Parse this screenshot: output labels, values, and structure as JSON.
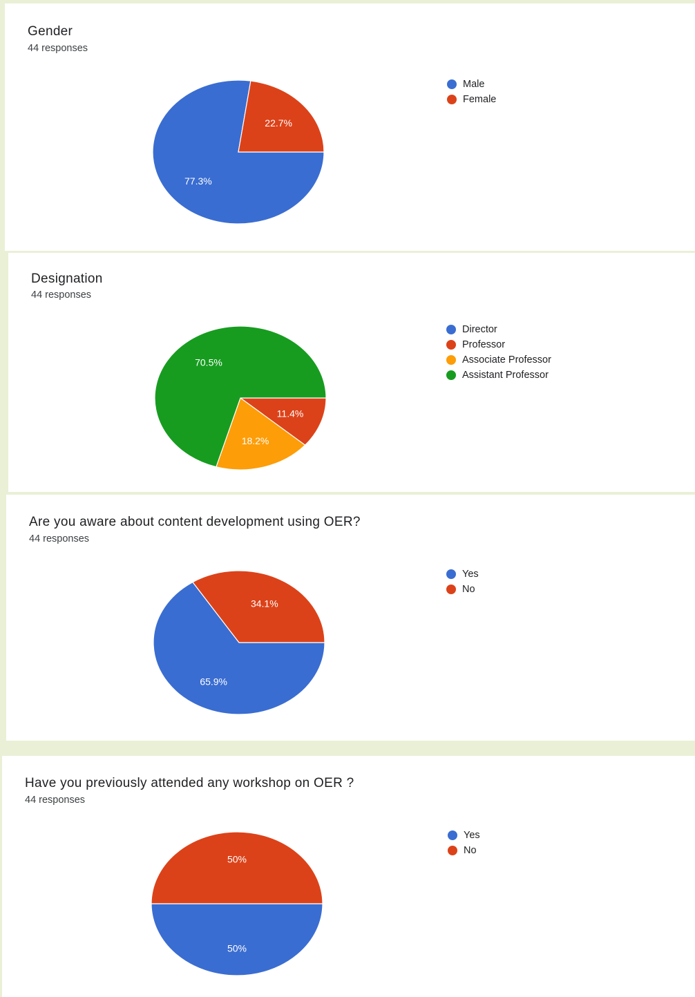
{
  "colors": {
    "blue": "#3a6dd1",
    "red": "#dc4219",
    "orange": "#fd9d08",
    "green": "#179c20"
  },
  "chart_data": [
    {
      "type": "pie",
      "title": "Gender",
      "subtitle": "44 responses",
      "labels": [
        "Male",
        "Female"
      ],
      "values": [
        77.3,
        22.7
      ],
      "value_labels": [
        "77.3%",
        "22.7%"
      ],
      "colors": [
        "#3a6dd1",
        "#dc4219"
      ],
      "legend": "right"
    },
    {
      "type": "pie",
      "title": "Designation",
      "subtitle": "44 responses",
      "labels": [
        "Director",
        "Professor",
        "Associate Professor",
        "Assistant Professor"
      ],
      "values": [
        0,
        11.4,
        18.2,
        70.5
      ],
      "value_labels": [
        "",
        "11.4%",
        "18.2%",
        "70.5%"
      ],
      "colors": [
        "#3a6dd1",
        "#dc4219",
        "#fd9d08",
        "#179c20"
      ],
      "legend": "right"
    },
    {
      "type": "pie",
      "title": "Are you aware about content development using OER?",
      "subtitle": "44 responses",
      "labels": [
        "Yes",
        "No"
      ],
      "values": [
        65.9,
        34.1
      ],
      "value_labels": [
        "65.9%",
        "34.1%"
      ],
      "colors": [
        "#3a6dd1",
        "#dc4219"
      ],
      "legend": "right"
    },
    {
      "type": "pie",
      "title": "Have you previously attended any workshop on OER ?",
      "subtitle": "44 responses",
      "labels": [
        "Yes",
        "No"
      ],
      "values": [
        50,
        50
      ],
      "value_labels": [
        "50%",
        "50%"
      ],
      "colors": [
        "#3a6dd1",
        "#dc4219"
      ],
      "legend": "right"
    }
  ]
}
